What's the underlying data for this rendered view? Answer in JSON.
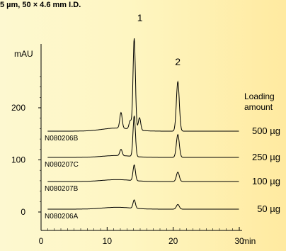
{
  "title_fragment": "5 µm, 50 × 4.6 mm I.D.",
  "chart_data": {
    "type": "line",
    "title": "",
    "xlabel": "min",
    "ylabel": "mAU",
    "xlim": [
      0,
      30
    ],
    "ylim": [
      0,
      200
    ],
    "x_ticks": [
      0,
      10,
      20,
      30
    ],
    "y_ticks": [
      0,
      100,
      200
    ],
    "grid": false,
    "peak_labels": [
      {
        "label": "1",
        "x": 14.1
      },
      {
        "label": "2",
        "x": 20.7
      }
    ],
    "legend_header": [
      "Loading",
      "amount"
    ],
    "series": [
      {
        "name": "500 µg",
        "sample_id": "N080206B",
        "peaks": [
          {
            "x": 14.1,
            "height": 175
          },
          {
            "x": 20.7,
            "height": 95
          },
          {
            "x": 12.1,
            "height": 30
          },
          {
            "x": 13.5,
            "height": 16
          },
          {
            "x": 14.9,
            "height": 24
          }
        ]
      },
      {
        "name": "250 µg",
        "sample_id": "N080207C",
        "peaks": [
          {
            "x": 14.1,
            "height": 78
          },
          {
            "x": 20.7,
            "height": 44
          },
          {
            "x": 12.1,
            "height": 12
          }
        ]
      },
      {
        "name": "100 µg",
        "sample_id": "N080207B",
        "peaks": [
          {
            "x": 14.1,
            "height": 30
          },
          {
            "x": 20.7,
            "height": 18
          }
        ]
      },
      {
        "name": "50 µg",
        "sample_id": "N080206A",
        "peaks": [
          {
            "x": 14.1,
            "height": 16
          },
          {
            "x": 20.7,
            "height": 9
          }
        ]
      }
    ]
  }
}
